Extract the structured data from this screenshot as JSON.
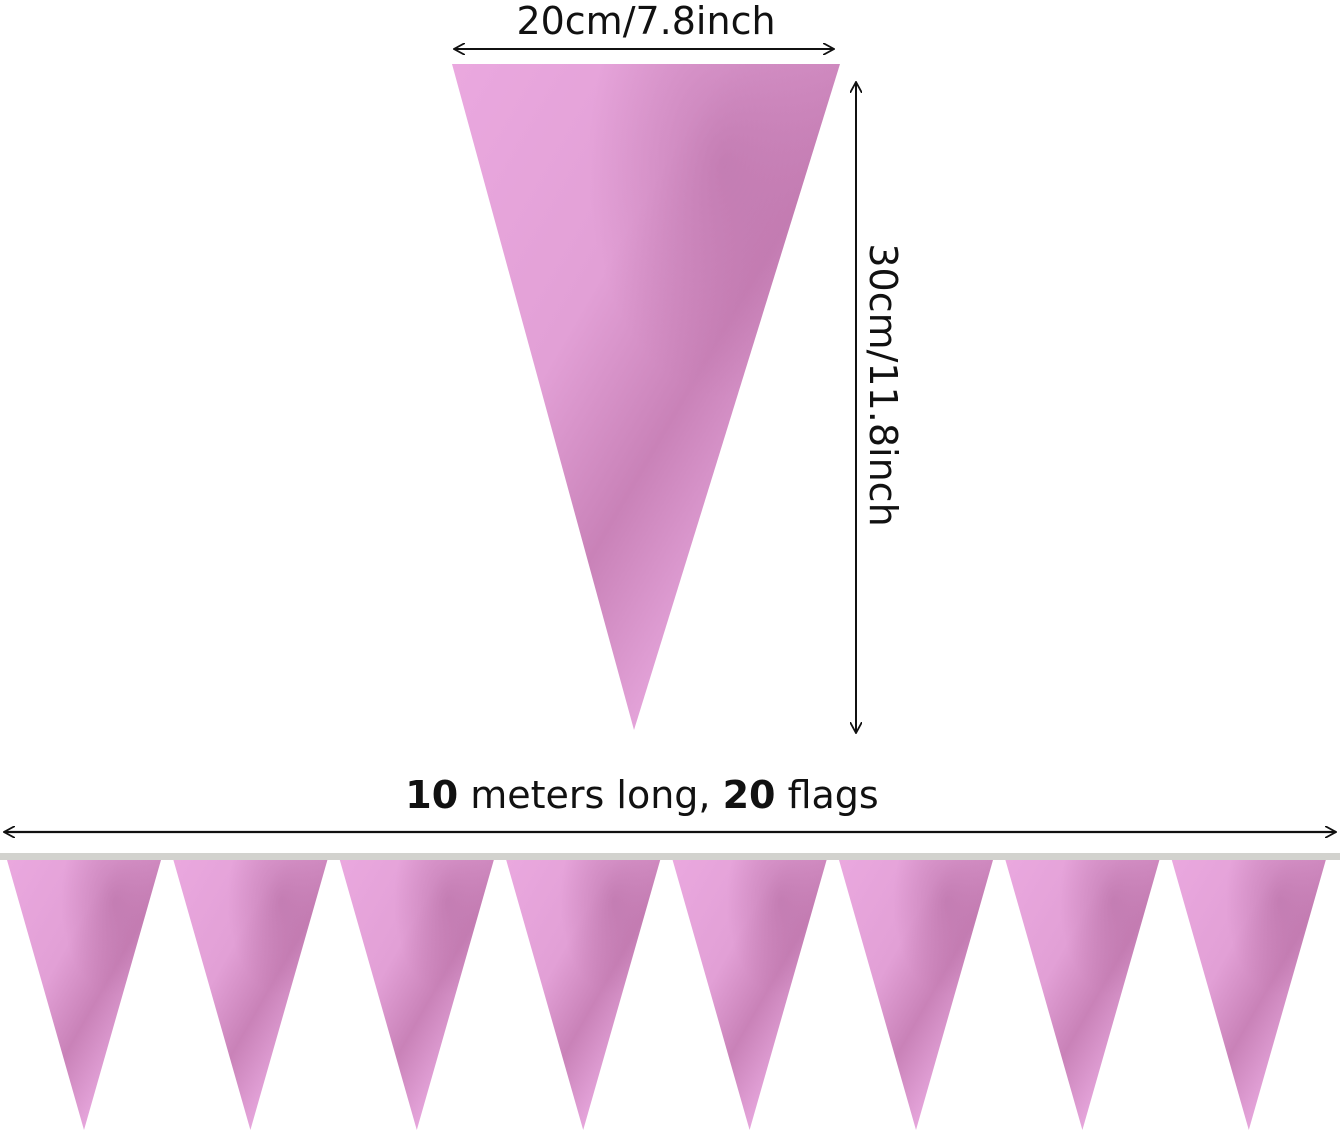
{
  "single_flag": {
    "width_label": "20cm/7.8inch",
    "height_label": "30cm/11.8inch"
  },
  "banner": {
    "length_label_parts": [
      "10",
      " meters long, ",
      "20",
      " flags"
    ],
    "flag_count_visible": 8
  },
  "colors": {
    "flag_light": "#eaa8df",
    "flag_dark": "#c57db3",
    "string": "#d2d2ce",
    "arrow": "#111111"
  }
}
